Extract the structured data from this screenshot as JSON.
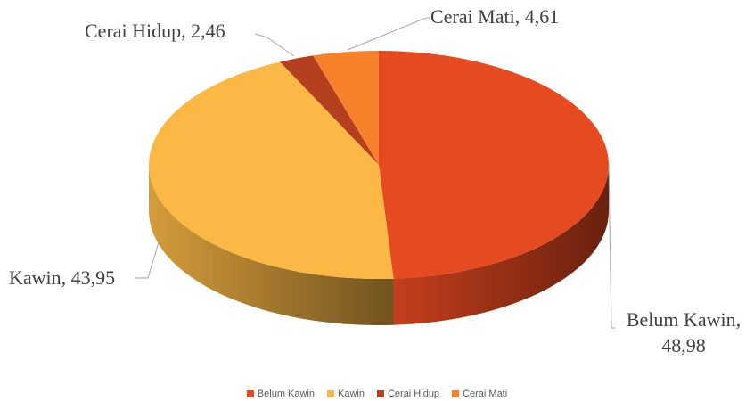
{
  "chart_data": {
    "type": "pie",
    "categories": [
      "Belum Kawin",
      "Kawin",
      "Cerai Hidup",
      "Cerai Mati"
    ],
    "values": [
      48.98,
      43.95,
      2.46,
      4.61
    ],
    "value_labels": [
      "Belum Kawin, 48,98",
      "Kawin, 43,95",
      "Cerai Hidup, 2,46",
      "Cerai Mati, 4,61"
    ],
    "colors": [
      "#e64a21",
      "#fbb845",
      "#b5401f",
      "#f7812a"
    ],
    "legend": "bottom"
  }
}
